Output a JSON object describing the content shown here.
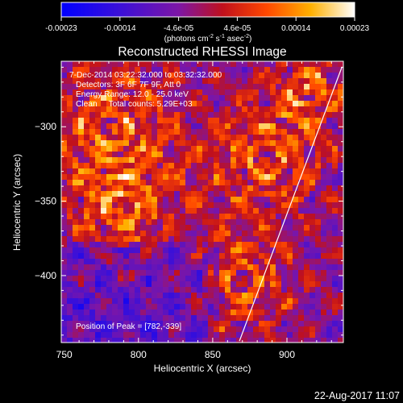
{
  "chart_data": {
    "type": "heatmap",
    "title": "Reconstructed RHESSI Image",
    "xlabel": "Heliocentric X (arcsec)",
    "ylabel": "Heliocentric Y (arcsec)",
    "xlim": [
      748,
      938
    ],
    "ylim": [
      -445,
      -256
    ],
    "x_ticks": [
      750,
      800,
      850,
      900
    ],
    "y_ticks": [
      -300,
      -350,
      -400
    ],
    "colorbar": {
      "min": -0.00023,
      "max": 0.00023,
      "ticks": [
        "-0.00023",
        "-0.00014",
        "-4.6e-05",
        "4.6e-05",
        "0.00014",
        "0.00023"
      ],
      "label_main": "(photons cm",
      "label_sup1": "-2",
      "label_mid1": " s",
      "label_sup2": "-1",
      "label_mid2": " asec",
      "label_sup3": "-2",
      "label_end": ")",
      "colormap": "blue-purple-red-orange-yellow-white"
    },
    "annotations": [
      "7-Dec-2014 03:22:32.000 to 03:32:32.000",
      "Detectors: 3F 6F 7F 9F, Att 0",
      "Energy Range: 12.0 - 25.0 keV",
      "Clean     Total counts: 5.29E+03"
    ],
    "peak_note": "Position of Peak = [782,-339]",
    "peak_position": [
      782,
      -339
    ],
    "limb_line": [
      [
        868,
        -444
      ],
      [
        937,
        -260
      ]
    ]
  },
  "footer": {
    "timestamp": "22-Aug-2017 11:07"
  }
}
